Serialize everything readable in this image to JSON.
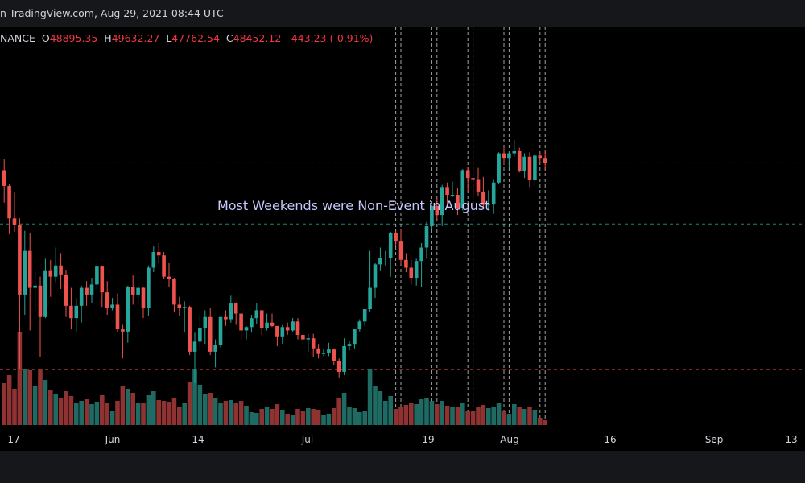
{
  "header": {
    "source_text": "n TradingView.com, Aug 29, 2021 08:44 UTC"
  },
  "ohlc": {
    "symbol": "NANCE",
    "open_label": "O",
    "open": "48895.35",
    "high_label": "H",
    "high": "49632.27",
    "low_label": "L",
    "low": "47762.54",
    "close_label": "C",
    "close": "48452.12",
    "change": "-443.23 (-0.91%)"
  },
  "colors": {
    "up": "#26a69a",
    "down": "#ef5350",
    "up_volume": "#1f6b63",
    "down_volume": "#8f3232",
    "background": "#000000",
    "grid_dashes": "#c0c0c0"
  },
  "chart_data": {
    "type": "candlestick",
    "title": "",
    "annotation": "Most Weekends were Non-Event in August",
    "x_tick_labels": [
      "17",
      "Jun",
      "14",
      "Jul",
      "19",
      "Aug",
      "16",
      "Sep",
      "13"
    ],
    "y_axis_visible": false,
    "horizontal_levels": [
      {
        "value": 43000,
        "style": "dashed",
        "color": "#26a69a"
      },
      {
        "value": 30000,
        "style": "dashed",
        "color": "#ef5350"
      }
    ],
    "weekend_markers": [
      "Jul 31",
      "Aug 1",
      "Aug 7",
      "Aug 8",
      "Aug 14",
      "Aug 15",
      "Aug 21",
      "Aug 22",
      "Aug 28",
      "Aug 29"
    ],
    "candles": [
      {
        "date": "May 16",
        "o": 47800,
        "h": 48800,
        "l": 44900,
        "c": 46400,
        "v": 52
      },
      {
        "date": "May 17",
        "o": 46400,
        "h": 46600,
        "l": 42100,
        "c": 43500,
        "v": 62
      },
      {
        "date": "May 18",
        "o": 43500,
        "h": 45800,
        "l": 42300,
        "c": 42900,
        "v": 45
      },
      {
        "date": "May 19",
        "o": 42900,
        "h": 43500,
        "l": 30000,
        "c": 36700,
        "v": 115
      },
      {
        "date": "May 20",
        "o": 36700,
        "h": 42400,
        "l": 34900,
        "c": 40600,
        "v": 70
      },
      {
        "date": "May 21",
        "o": 40600,
        "h": 42200,
        "l": 33500,
        "c": 37300,
        "v": 68
      },
      {
        "date": "May 22",
        "o": 37300,
        "h": 38800,
        "l": 35300,
        "c": 37500,
        "v": 48
      },
      {
        "date": "May 23",
        "o": 37500,
        "h": 38300,
        "l": 31100,
        "c": 34700,
        "v": 70
      },
      {
        "date": "May 24",
        "o": 34700,
        "h": 39900,
        "l": 34600,
        "c": 38800,
        "v": 56
      },
      {
        "date": "May 25",
        "o": 38800,
        "h": 39800,
        "l": 36500,
        "c": 38300,
        "v": 43
      },
      {
        "date": "May 26",
        "o": 38300,
        "h": 40900,
        "l": 37800,
        "c": 39300,
        "v": 38
      },
      {
        "date": "May 27",
        "o": 39300,
        "h": 40400,
        "l": 37200,
        "c": 38500,
        "v": 34
      },
      {
        "date": "May 28",
        "o": 38500,
        "h": 38900,
        "l": 34700,
        "c": 35700,
        "v": 42
      },
      {
        "date": "May 29",
        "o": 35700,
        "h": 37300,
        "l": 33600,
        "c": 34600,
        "v": 36
      },
      {
        "date": "May 30",
        "o": 34600,
        "h": 36400,
        "l": 33400,
        "c": 35700,
        "v": 28
      },
      {
        "date": "May 31",
        "o": 35700,
        "h": 37500,
        "l": 34200,
        "c": 37300,
        "v": 30
      },
      {
        "date": "Jun 1",
        "o": 37300,
        "h": 37900,
        "l": 35700,
        "c": 36700,
        "v": 32
      },
      {
        "date": "Jun 2",
        "o": 36700,
        "h": 38200,
        "l": 35900,
        "c": 37600,
        "v": 26
      },
      {
        "date": "Jun 3",
        "o": 37600,
        "h": 39500,
        "l": 37200,
        "c": 39200,
        "v": 29
      },
      {
        "date": "Jun 4",
        "o": 39200,
        "h": 39300,
        "l": 35600,
        "c": 36900,
        "v": 37
      },
      {
        "date": "Jun 5",
        "o": 36900,
        "h": 37900,
        "l": 34900,
        "c": 35500,
        "v": 27
      },
      {
        "date": "Jun 6",
        "o": 35500,
        "h": 36400,
        "l": 35300,
        "c": 35800,
        "v": 18
      },
      {
        "date": "Jun 7",
        "o": 35800,
        "h": 36800,
        "l": 33400,
        "c": 33600,
        "v": 30
      },
      {
        "date": "Jun 8",
        "o": 33600,
        "h": 34000,
        "l": 31000,
        "c": 33400,
        "v": 48
      },
      {
        "date": "Jun 9",
        "o": 33400,
        "h": 37500,
        "l": 32400,
        "c": 37400,
        "v": 45
      },
      {
        "date": "Jun 10",
        "o": 37400,
        "h": 38400,
        "l": 35800,
        "c": 36700,
        "v": 40
      },
      {
        "date": "Jun 11",
        "o": 36700,
        "h": 37700,
        "l": 35900,
        "c": 37300,
        "v": 28
      },
      {
        "date": "Jun 12",
        "o": 37300,
        "h": 37400,
        "l": 34600,
        "c": 35500,
        "v": 27
      },
      {
        "date": "Jun 13",
        "o": 35500,
        "h": 39300,
        "l": 34800,
        "c": 39100,
        "v": 37
      },
      {
        "date": "Jun 14",
        "o": 39100,
        "h": 41000,
        "l": 38700,
        "c": 40500,
        "v": 42
      },
      {
        "date": "Jun 15",
        "o": 40500,
        "h": 41300,
        "l": 39500,
        "c": 40200,
        "v": 31
      },
      {
        "date": "Jun 16",
        "o": 40200,
        "h": 40500,
        "l": 38100,
        "c": 38300,
        "v": 30
      },
      {
        "date": "Jun 17",
        "o": 38300,
        "h": 39500,
        "l": 37400,
        "c": 38100,
        "v": 29
      },
      {
        "date": "Jun 18",
        "o": 38100,
        "h": 38200,
        "l": 35100,
        "c": 35800,
        "v": 33
      },
      {
        "date": "Jun 19",
        "o": 35800,
        "h": 36500,
        "l": 34800,
        "c": 35500,
        "v": 23
      },
      {
        "date": "Jun 20",
        "o": 35500,
        "h": 36100,
        "l": 33300,
        "c": 35600,
        "v": 27
      },
      {
        "date": "Jun 21",
        "o": 35600,
        "h": 35700,
        "l": 31300,
        "c": 31600,
        "v": 54
      },
      {
        "date": "Jun 22",
        "o": 31600,
        "h": 33300,
        "l": 28800,
        "c": 32500,
        "v": 70
      },
      {
        "date": "Jun 23",
        "o": 32500,
        "h": 34800,
        "l": 31700,
        "c": 33700,
        "v": 50
      },
      {
        "date": "Jun 24",
        "o": 33700,
        "h": 35300,
        "l": 32300,
        "c": 34700,
        "v": 38
      },
      {
        "date": "Jun 25",
        "o": 34700,
        "h": 35500,
        "l": 31300,
        "c": 31600,
        "v": 40
      },
      {
        "date": "Jun 26",
        "o": 31600,
        "h": 32700,
        "l": 30200,
        "c": 32200,
        "v": 34
      },
      {
        "date": "Jun 27",
        "o": 32200,
        "h": 34700,
        "l": 32000,
        "c": 34700,
        "v": 28
      },
      {
        "date": "Jun 28",
        "o": 34700,
        "h": 35300,
        "l": 33900,
        "c": 34500,
        "v": 30
      },
      {
        "date": "Jun 29",
        "o": 34500,
        "h": 36600,
        "l": 34200,
        "c": 35900,
        "v": 31
      },
      {
        "date": "Jun 30",
        "o": 35900,
        "h": 36000,
        "l": 34000,
        "c": 35000,
        "v": 28
      },
      {
        "date": "Jul 1",
        "o": 35000,
        "h": 35000,
        "l": 32700,
        "c": 33500,
        "v": 30
      },
      {
        "date": "Jul 2",
        "o": 33500,
        "h": 33900,
        "l": 32700,
        "c": 33800,
        "v": 24
      },
      {
        "date": "Jul 3",
        "o": 33800,
        "h": 34900,
        "l": 33300,
        "c": 34600,
        "v": 16
      },
      {
        "date": "Jul 4",
        "o": 34600,
        "h": 35900,
        "l": 34100,
        "c": 35300,
        "v": 15
      },
      {
        "date": "Jul 5",
        "o": 35300,
        "h": 35300,
        "l": 33100,
        "c": 33700,
        "v": 20
      },
      {
        "date": "Jul 6",
        "o": 33700,
        "h": 35000,
        "l": 33500,
        "c": 34200,
        "v": 22
      },
      {
        "date": "Jul 7",
        "o": 34200,
        "h": 35000,
        "l": 33800,
        "c": 33900,
        "v": 20
      },
      {
        "date": "Jul 8",
        "o": 33900,
        "h": 33900,
        "l": 32100,
        "c": 32900,
        "v": 26
      },
      {
        "date": "Jul 9",
        "o": 32900,
        "h": 34000,
        "l": 32300,
        "c": 33800,
        "v": 19
      },
      {
        "date": "Jul 10",
        "o": 33800,
        "h": 34200,
        "l": 33100,
        "c": 33500,
        "v": 14
      },
      {
        "date": "Jul 11",
        "o": 33500,
        "h": 34600,
        "l": 33400,
        "c": 34300,
        "v": 13
      },
      {
        "date": "Jul 12",
        "o": 34300,
        "h": 34600,
        "l": 32700,
        "c": 33100,
        "v": 20
      },
      {
        "date": "Jul 13",
        "o": 33100,
        "h": 33300,
        "l": 32200,
        "c": 32700,
        "v": 18
      },
      {
        "date": "Jul 14",
        "o": 32700,
        "h": 33200,
        "l": 31600,
        "c": 32800,
        "v": 21
      },
      {
        "date": "Jul 15",
        "o": 32800,
        "h": 33200,
        "l": 31100,
        "c": 31900,
        "v": 20
      },
      {
        "date": "Jul 16",
        "o": 31900,
        "h": 32300,
        "l": 31000,
        "c": 31400,
        "v": 19
      },
      {
        "date": "Jul 17",
        "o": 31400,
        "h": 31900,
        "l": 31200,
        "c": 31500,
        "v": 12
      },
      {
        "date": "Jul 18",
        "o": 31500,
        "h": 32400,
        "l": 31200,
        "c": 31800,
        "v": 14
      },
      {
        "date": "Jul 19",
        "o": 31800,
        "h": 31900,
        "l": 30400,
        "c": 30800,
        "v": 21
      },
      {
        "date": "Jul 20",
        "o": 30800,
        "h": 31000,
        "l": 29300,
        "c": 29800,
        "v": 33
      },
      {
        "date": "Jul 21",
        "o": 29800,
        "h": 32800,
        "l": 29500,
        "c": 32100,
        "v": 40
      },
      {
        "date": "Jul 22",
        "o": 32100,
        "h": 32600,
        "l": 31700,
        "c": 32300,
        "v": 22
      },
      {
        "date": "Jul 23",
        "o": 32300,
        "h": 33600,
        "l": 31900,
        "c": 33600,
        "v": 21
      },
      {
        "date": "Jul 24",
        "o": 33600,
        "h": 34500,
        "l": 33400,
        "c": 34300,
        "v": 16
      },
      {
        "date": "Jul 25",
        "o": 34300,
        "h": 35400,
        "l": 33900,
        "c": 35400,
        "v": 18
      },
      {
        "date": "Jul 26",
        "o": 35400,
        "h": 40600,
        "l": 35200,
        "c": 37300,
        "v": 70
      },
      {
        "date": "Jul 27",
        "o": 37300,
        "h": 39500,
        "l": 36400,
        "c": 39400,
        "v": 48
      },
      {
        "date": "Jul 28",
        "o": 39400,
        "h": 40900,
        "l": 38800,
        "c": 40000,
        "v": 42
      },
      {
        "date": "Jul 29",
        "o": 40000,
        "h": 40600,
        "l": 39300,
        "c": 40000,
        "v": 30
      },
      {
        "date": "Jul 30",
        "o": 40000,
        "h": 42300,
        "l": 38300,
        "c": 42200,
        "v": 36
      },
      {
        "date": "Jul 31",
        "o": 42200,
        "h": 42400,
        "l": 41000,
        "c": 41500,
        "v": 20
      },
      {
        "date": "Aug 1",
        "o": 41500,
        "h": 42600,
        "l": 39400,
        "c": 39800,
        "v": 22
      },
      {
        "date": "Aug 2",
        "o": 39800,
        "h": 40400,
        "l": 38700,
        "c": 39100,
        "v": 25
      },
      {
        "date": "Aug 3",
        "o": 39100,
        "h": 39800,
        "l": 37600,
        "c": 38200,
        "v": 28
      },
      {
        "date": "Aug 4",
        "o": 38200,
        "h": 39900,
        "l": 37500,
        "c": 39700,
        "v": 26
      },
      {
        "date": "Aug 5",
        "o": 39700,
        "h": 41300,
        "l": 37400,
        "c": 40900,
        "v": 32
      },
      {
        "date": "Aug 6",
        "o": 40900,
        "h": 43200,
        "l": 39900,
        "c": 42800,
        "v": 33
      },
      {
        "date": "Aug 7",
        "o": 42800,
        "h": 44700,
        "l": 42500,
        "c": 44600,
        "v": 30
      },
      {
        "date": "Aug 8",
        "o": 44600,
        "h": 45300,
        "l": 43300,
        "c": 43800,
        "v": 26
      },
      {
        "date": "Aug 9",
        "o": 43800,
        "h": 46500,
        "l": 42800,
        "c": 46300,
        "v": 30
      },
      {
        "date": "Aug 10",
        "o": 46300,
        "h": 46700,
        "l": 44700,
        "c": 45600,
        "v": 24
      },
      {
        "date": "Aug 11",
        "o": 45600,
        "h": 46800,
        "l": 45400,
        "c": 45600,
        "v": 22
      },
      {
        "date": "Aug 12",
        "o": 45600,
        "h": 46200,
        "l": 43800,
        "c": 44400,
        "v": 23
      },
      {
        "date": "Aug 13",
        "o": 44400,
        "h": 47900,
        "l": 44200,
        "c": 47800,
        "v": 27
      },
      {
        "date": "Aug 14",
        "o": 47800,
        "h": 48100,
        "l": 45900,
        "c": 47100,
        "v": 18
      },
      {
        "date": "Aug 15",
        "o": 47100,
        "h": 47400,
        "l": 45500,
        "c": 47000,
        "v": 17
      },
      {
        "date": "Aug 16",
        "o": 47000,
        "h": 48000,
        "l": 45500,
        "c": 45900,
        "v": 22
      },
      {
        "date": "Aug 17",
        "o": 45900,
        "h": 47200,
        "l": 44400,
        "c": 44700,
        "v": 25
      },
      {
        "date": "Aug 18",
        "o": 44700,
        "h": 46000,
        "l": 44200,
        "c": 44800,
        "v": 21
      },
      {
        "date": "Aug 19",
        "o": 44800,
        "h": 47000,
        "l": 43900,
        "c": 46700,
        "v": 23
      },
      {
        "date": "Aug 20",
        "o": 46700,
        "h": 49400,
        "l": 46600,
        "c": 49300,
        "v": 28
      },
      {
        "date": "Aug 21",
        "o": 49300,
        "h": 49800,
        "l": 48300,
        "c": 48900,
        "v": 18
      },
      {
        "date": "Aug 22",
        "o": 48900,
        "h": 49500,
        "l": 48100,
        "c": 49300,
        "v": 14
      },
      {
        "date": "Aug 23",
        "o": 49300,
        "h": 50500,
        "l": 49000,
        "c": 49500,
        "v": 26
      },
      {
        "date": "Aug 24",
        "o": 49500,
        "h": 49800,
        "l": 47600,
        "c": 47700,
        "v": 22
      },
      {
        "date": "Aug 25",
        "o": 47700,
        "h": 49300,
        "l": 47100,
        "c": 49000,
        "v": 20
      },
      {
        "date": "Aug 26",
        "o": 49000,
        "h": 49400,
        "l": 46300,
        "c": 46900,
        "v": 22
      },
      {
        "date": "Aug 27",
        "o": 46900,
        "h": 49200,
        "l": 46400,
        "c": 49100,
        "v": 19
      },
      {
        "date": "Aug 28",
        "o": 49100,
        "h": 49300,
        "l": 48400,
        "c": 48900,
        "v": 9
      },
      {
        "date": "Aug 29",
        "o": 48895.35,
        "h": 49632.27,
        "l": 47762.54,
        "c": 48452.12,
        "v": 6
      }
    ]
  }
}
